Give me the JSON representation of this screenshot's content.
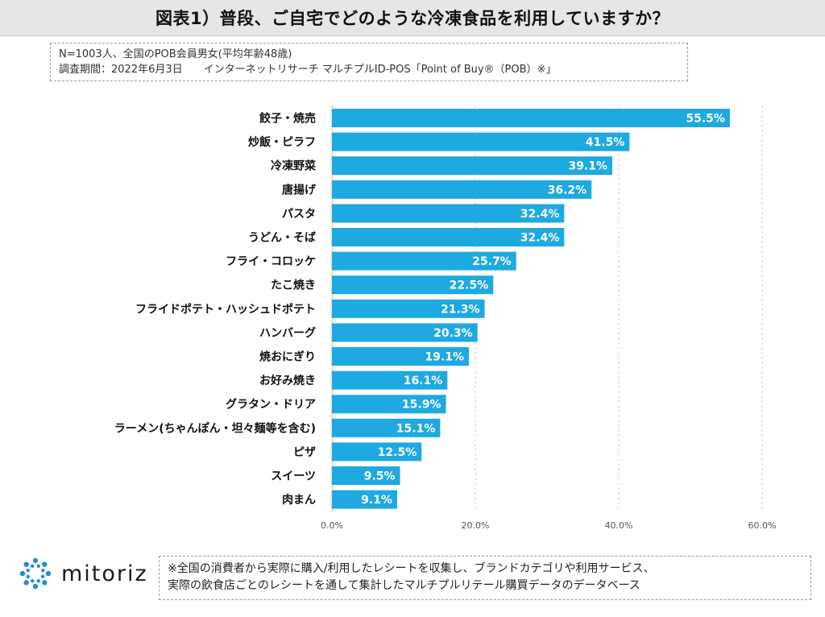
{
  "header": {
    "title": "図表1）普段、ご自宅でどのような冷凍食品を利用していますか？"
  },
  "note": {
    "line1": "N=1003人、全国のPOB会員男女(平均年齢48歳)",
    "line2": "調査期間：2022年6月3日　　インターネットリサーチ マルチプルID-POS「Point of Buy®（POB）※」"
  },
  "chart_data": {
    "type": "bar",
    "orientation": "horizontal",
    "categories": [
      "餃子・焼売",
      "炒飯・ピラフ",
      "冷凍野菜",
      "唐揚げ",
      "パスタ",
      "うどん・そば",
      "フライ・コロッケ",
      "たこ焼き",
      "フライドポテト・ハッシュドポテト",
      "ハンバーグ",
      "焼おにぎり",
      "お好み焼き",
      "グラタン・ドリア",
      "ラーメン(ちゃんぽん・坦々麺等を含む)",
      "ピザ",
      "スイーツ",
      "肉まん"
    ],
    "values": [
      55.5,
      41.5,
      39.1,
      36.2,
      32.4,
      32.4,
      25.7,
      22.5,
      21.3,
      20.3,
      19.1,
      16.1,
      15.9,
      15.1,
      12.5,
      9.5,
      9.1
    ],
    "data_labels": [
      "55.5%",
      "41.5%",
      "39.1%",
      "36.2%",
      "32.4%",
      "32.4%",
      "25.7%",
      "22.5%",
      "21.3%",
      "20.3%",
      "19.1%",
      "16.1%",
      "15.9%",
      "15.1%",
      "12.5%",
      "9.5%",
      "9.1%"
    ],
    "xlim": [
      0,
      60
    ],
    "xticks": [
      "0.0%",
      "20.0%",
      "40.0%",
      "60.0%"
    ],
    "bar_color": "#1ea9e1",
    "grid": "vertical dashed",
    "legend": "none"
  },
  "logo": {
    "name": "mitoriz",
    "color": "#1f8fd6"
  },
  "footer": {
    "line1": "※全国の消費者から実際に購入/利用したレシートを収集し、ブランドカテゴリや利用サービス、",
    "line2": "実際の飲食店ごとのレシートを通して集計したマルチプルリテール購買データのデータベース"
  }
}
